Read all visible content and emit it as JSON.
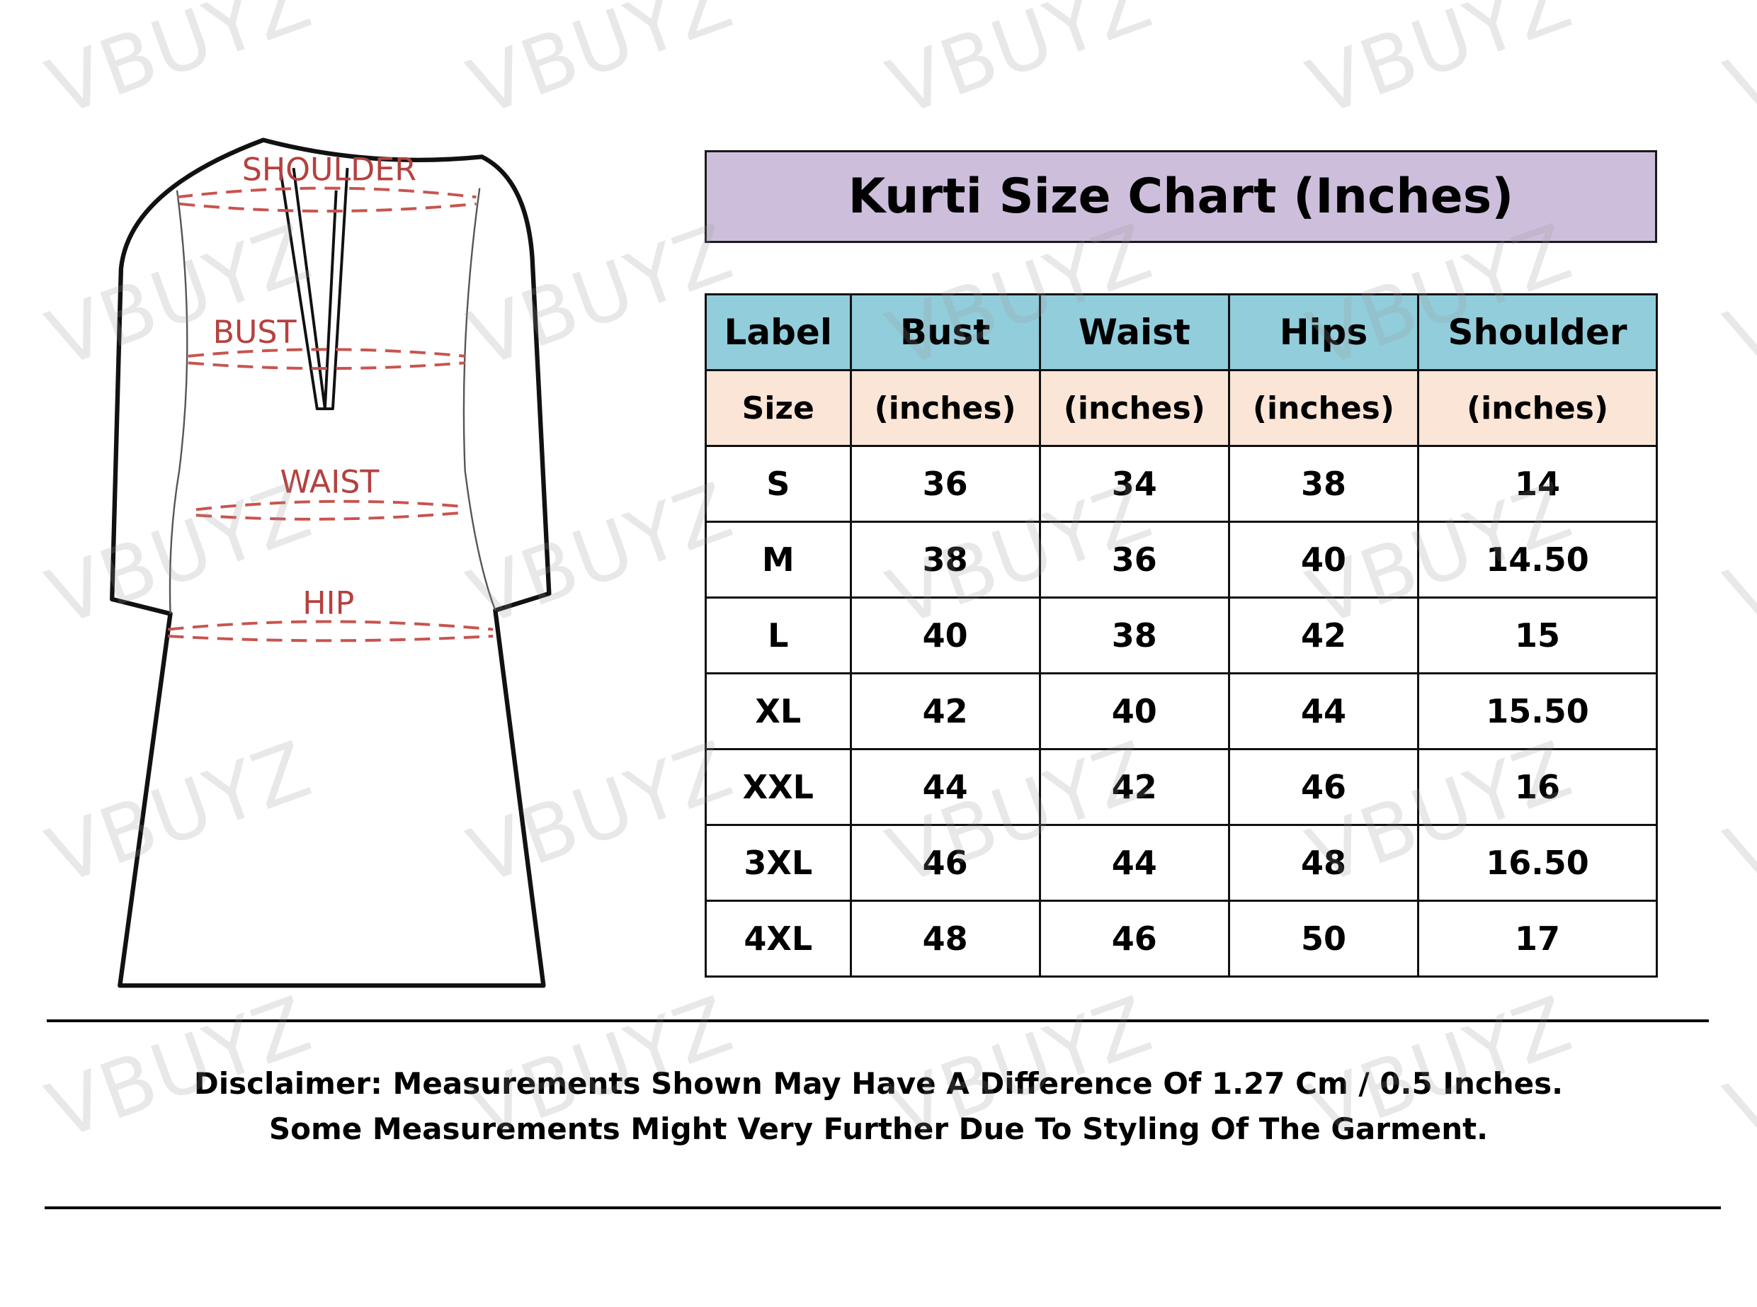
{
  "title": "Kurti Size Chart (Inches)",
  "watermark": "VBUYZ",
  "colors": {
    "title_bg": "#cdbfdc",
    "header_bg": "#92cddc",
    "subheader_bg": "#fbe5d6",
    "measure_lines": "#b5413f"
  },
  "diagram": {
    "labels": {
      "shoulder": "SHOULDER",
      "bust": "BUST",
      "waist": "WAIST",
      "hip": "HIP"
    }
  },
  "table": {
    "headers": [
      "Label",
      "Bust",
      "Waist",
      "Hips",
      "Shoulder"
    ],
    "subheaders": [
      "Size",
      "(inches)",
      "(inches)",
      "(inches)",
      "(inches)"
    ],
    "rows": [
      [
        "S",
        "36",
        "34",
        "38",
        "14"
      ],
      [
        "M",
        "38",
        "36",
        "40",
        "14.50"
      ],
      [
        "L",
        "40",
        "38",
        "42",
        "15"
      ],
      [
        "XL",
        "42",
        "40",
        "44",
        "15.50"
      ],
      [
        "XXL",
        "44",
        "42",
        "46",
        "16"
      ],
      [
        "3XL",
        "46",
        "44",
        "48",
        "16.50"
      ],
      [
        "4XL",
        "48",
        "46",
        "50",
        "17"
      ]
    ]
  },
  "disclaimer": {
    "line1": "Disclaimer: Measurements Shown May Have A Difference Of 1.27 Cm / 0.5 Inches.",
    "line2": "Some Measurements Might Very Further Due To Styling Of The Garment."
  }
}
